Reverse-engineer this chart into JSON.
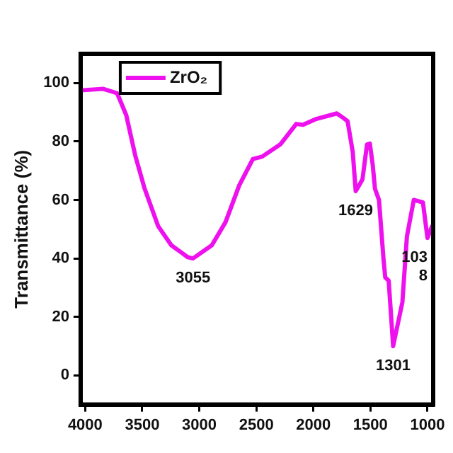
{
  "chart_data": {
    "type": "line",
    "ylabel": "Transmittance (%)",
    "x": [
      4040,
      3840,
      3720,
      3640,
      3560,
      3480,
      3360,
      3245,
      3100,
      3055,
      2890,
      2770,
      2650,
      2530,
      2450,
      2290,
      2150,
      2090,
      1975,
      1795,
      1735,
      1700,
      1655,
      1629,
      1570,
      1530,
      1505,
      1480,
      1460,
      1425,
      1385,
      1370,
      1340,
      1301,
      1220,
      1180,
      1120,
      1040,
      1000,
      960
    ],
    "series": [
      {
        "name": "ZrO₂",
        "color": "#ee11ee",
        "values": [
          97.5,
          98,
          96.5,
          89,
          75,
          64,
          51,
          44.5,
          40.4,
          40,
          44.5,
          52.4,
          65,
          74,
          74.8,
          79,
          86,
          85.7,
          87.7,
          89.6,
          88,
          86.9,
          76.4,
          63,
          67,
          79,
          79.3,
          72,
          63.8,
          60,
          39.6,
          33.5,
          32.4,
          10,
          25,
          47.6,
          60,
          59.2,
          47,
          51
        ]
      }
    ],
    "xlim": [
      4040,
      950
    ],
    "xticks": [
      4000,
      3500,
      3000,
      2500,
      2000,
      1500,
      1000
    ],
    "ylim": [
      -10,
      110
    ],
    "yticks": [
      0,
      20,
      40,
      60,
      80,
      100
    ],
    "grid": false,
    "legend": "top left",
    "marker": "none",
    "line_style": "solid",
    "annotations": [
      {
        "text": "3055",
        "x": 3055,
        "y": 40
      },
      {
        "text": "1629",
        "x": 1629,
        "y": 63
      },
      {
        "text": "1301",
        "x": 1301,
        "y": 10
      },
      {
        "text": "103",
        "x": 1000,
        "y": 47
      },
      {
        "text": "8",
        "x": 1000,
        "y": 47
      }
    ]
  }
}
